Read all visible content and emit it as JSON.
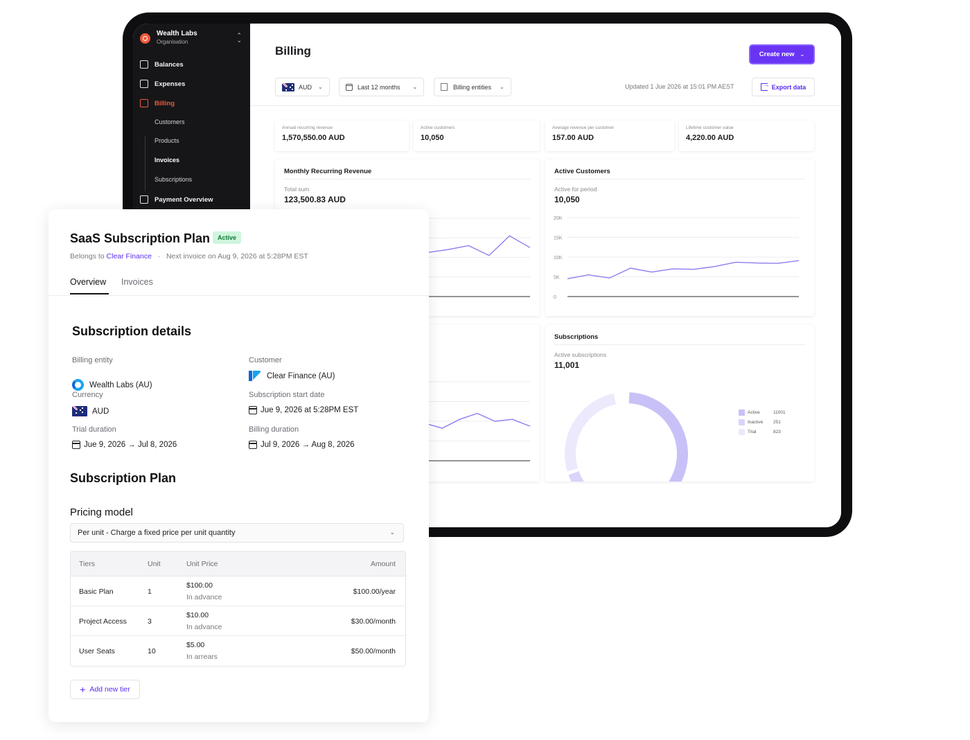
{
  "sidebar": {
    "org_name": "Wealth Labs",
    "org_subtitle": "Organisation",
    "items": [
      {
        "label": "Balances",
        "icon": "bank-icon"
      },
      {
        "label": "Expenses",
        "icon": "receipt-icon"
      },
      {
        "label": "Billing",
        "icon": "billing-icon",
        "active": true
      },
      {
        "label": "Payment Overview",
        "icon": "payment-overview-icon"
      }
    ],
    "billing_sub_items": [
      "Customers",
      "Products",
      "Invoices",
      "Subscriptions"
    ]
  },
  "header": {
    "title": "Billing",
    "create_label": "Create new",
    "currency": "AUD",
    "period": "Last 12 months",
    "entities": "Billing entities",
    "updated": "Updated 1 Jue 2026 at 15:01 PM AEST",
    "export_label": "Export data"
  },
  "stats": [
    {
      "label": "Annual recurring revenue",
      "value": "1,570,550.00 AUD"
    },
    {
      "label": "Active customers",
      "value": "10,050"
    },
    {
      "label": "Average revenue per customer",
      "value": "157.00 AUD"
    },
    {
      "label": "Lifetime customer value",
      "value": "4,220.00 AUD"
    }
  ],
  "cards": {
    "mrr": {
      "title": "Monthly Recurring Revenue",
      "sub_label": "Total sum",
      "value": "123,500.83 AUD"
    },
    "active_customers": {
      "title": "Active Customers",
      "sub_label": "Active for period",
      "value": "10,050"
    },
    "subscriptions": {
      "title": "Subscriptions",
      "sub_label": "Active subscriptions",
      "value": "11,001"
    }
  },
  "chart_data": [
    {
      "type": "line",
      "series": [
        {
          "values": [
            22,
            15,
            24,
            35,
            37,
            31,
            36,
            45,
            48,
            52,
            42,
            62,
            50
          ]
        }
      ],
      "ylim": [
        0,
        80
      ],
      "grid": true
    },
    {
      "type": "line",
      "y_ticks": [
        "20K",
        "15K",
        "10K",
        "5K",
        "0"
      ],
      "series": [
        {
          "values": [
            4500,
            5500,
            4700,
            7200,
            6200,
            7000,
            6900,
            7600,
            8700,
            8500,
            8400,
            9100
          ]
        }
      ],
      "ylim": [
        0,
        20000
      ],
      "grid": true
    },
    {
      "type": "line",
      "series": [
        {
          "values": [
            10,
            18,
            24,
            20,
            18,
            24,
            30,
            36,
            38,
            33,
            42,
            48,
            40,
            42,
            35
          ]
        }
      ],
      "ylim": [
        0,
        80
      ],
      "grid": true
    },
    {
      "type": "pie",
      "donut": true,
      "legend": "right",
      "slices": [
        {
          "label": "Active",
          "value": 11001,
          "color": "#c8c1f7"
        },
        {
          "label": "Inactive",
          "value": 251,
          "color": "#d9d4f9"
        },
        {
          "label": "Trial",
          "value": 823,
          "color": "#ece9fc"
        }
      ]
    }
  ],
  "legend_values": [
    "11001",
    "251",
    "823"
  ],
  "subscription": {
    "title": "SaaS Subscription Plan",
    "status": "Active",
    "belongs_prefix": "Belongs to",
    "belongs_to": "Clear Finance",
    "next_invoice": "Next invoice on Aug 9, 2026 at 5:28PM EST",
    "tabs": [
      "Overview",
      "Invoices"
    ],
    "details_heading": "Subscription details",
    "billing_entity_label": "Billing entity",
    "billing_entity": "Wealth Labs (AU)",
    "customer_label": "Customer",
    "customer": "Clear Finance (AU)",
    "currency_label": "Currency",
    "currency": "AUD",
    "start_label": "Subscription start date",
    "start": "Jue 9, 2026 at 5:28PM EST",
    "trial_label": "Trial duration",
    "trial": "Jue 9, 2026 → Jul 8, 2026",
    "billing_duration_label": "Billing duration",
    "billing_duration": "Jul 9, 2026 → Aug 8, 2026",
    "plan_heading": "Subscription Plan",
    "pricing_heading": "Pricing model",
    "pricing_model": "Per unit - Charge a fixed price per unit quantity",
    "table": {
      "headers": [
        "Tiers",
        "Unit",
        "Unit Price",
        "Amount"
      ],
      "rows": [
        {
          "tier": "Basic Plan",
          "unit": "1",
          "price": "$100.00",
          "timing": "In advance",
          "amount": "$100.00/year"
        },
        {
          "tier": "Project Access",
          "unit": "3",
          "price": "$10.00",
          "timing": "In advance",
          "amount": "$30.00/month"
        },
        {
          "tier": "User Seats",
          "unit": "10",
          "price": "$5.00",
          "timing": "In arrears",
          "amount": "$50.00/month"
        }
      ]
    },
    "add_tier_label": "Add new tier"
  }
}
